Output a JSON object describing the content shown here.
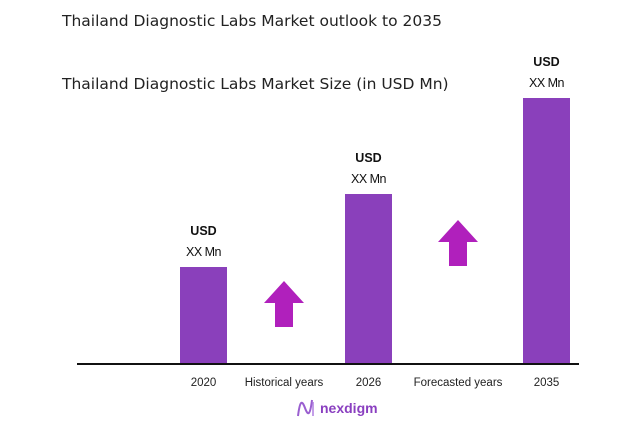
{
  "chart_data": {
    "type": "bar",
    "title": "Thailand Diagnostic Labs Market outlook to 2035",
    "subtitle": "Thailand Diagnostic Labs Market Size (in USD Mn)",
    "categories": [
      "2020",
      "2026",
      "2035"
    ],
    "data_labels": [
      {
        "currency": "USD",
        "value": "XX Mn"
      },
      {
        "currency": "USD",
        "value": "XX Mn"
      },
      {
        "currency": "USD",
        "value": "XX Mn"
      }
    ],
    "period_labels": [
      "Historical years",
      "Forecasted years"
    ],
    "bar_color": "#8a40bb",
    "arrow_color": "#b020bc",
    "axis_color": "#111111",
    "grid": false
  },
  "logo": {
    "text": "nexdigm",
    "color": "#8a3fc0"
  }
}
